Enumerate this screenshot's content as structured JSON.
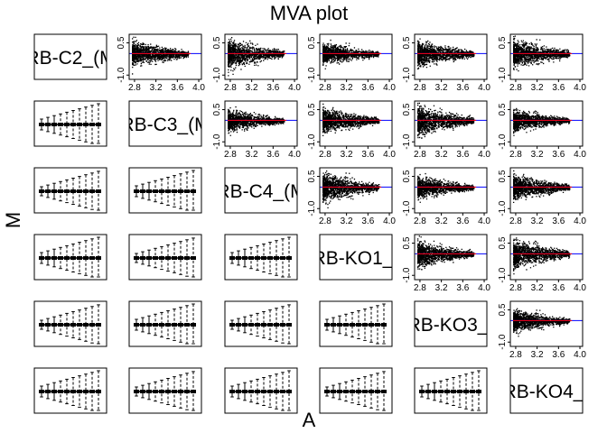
{
  "chart_data": {
    "type": "scatter",
    "title": "MVA plot",
    "xlabel": "A",
    "ylabel": "M",
    "samples": [
      "RB-C2_(M",
      "RB-C3_(M",
      "RB-C4_(M",
      "RB-KO1_(",
      "RB-KO3_(",
      "RB-KO4_("
    ],
    "upper_panels": {
      "kind": "MA scatter (dense point cloud)",
      "xlim": [
        2.7,
        4.05
      ],
      "ylim": [
        -1.2,
        0.9
      ],
      "x_ticks": [
        "2.8",
        "3.2",
        "3.6",
        "4.0"
      ],
      "y_ticks": [
        "-1.0",
        "0.5"
      ],
      "fit_line_color": "#ff0000",
      "zero_line_color": "#0000ff",
      "point_color": "#000000"
    },
    "lower_panels": {
      "kind": "boxplots of M binned by A",
      "boxes_per_panel": 10
    }
  }
}
